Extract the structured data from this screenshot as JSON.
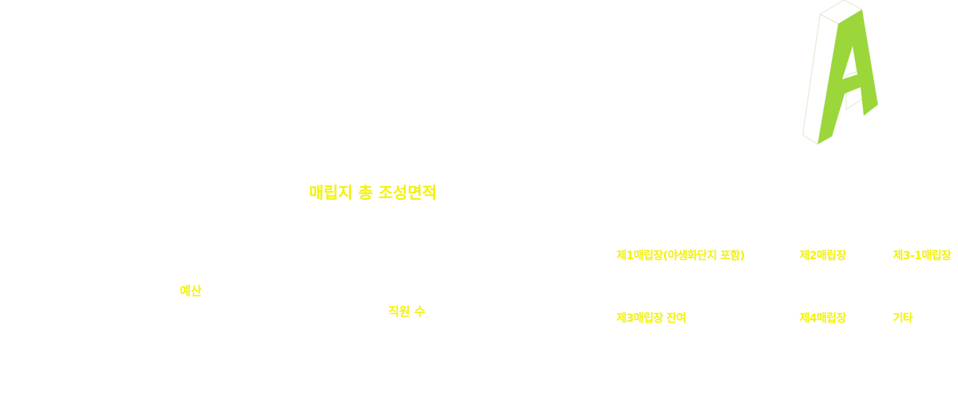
{
  "logo": {
    "letter": "A",
    "accent_color": "#9bd63a"
  },
  "headline": {
    "total_area_label": "매립지 총 조성면적"
  },
  "metrics": {
    "budget_label": "예산",
    "staff_label": "직원 수"
  },
  "legend": {
    "items": [
      "제1매립장(야생화단지 포함)",
      "제2매립장",
      "제3-1매립장",
      "제3매립장 잔여",
      "제4매립장",
      "기타"
    ]
  },
  "colors": {
    "text_accent": "#f2f20a",
    "background": "#ffffff"
  }
}
